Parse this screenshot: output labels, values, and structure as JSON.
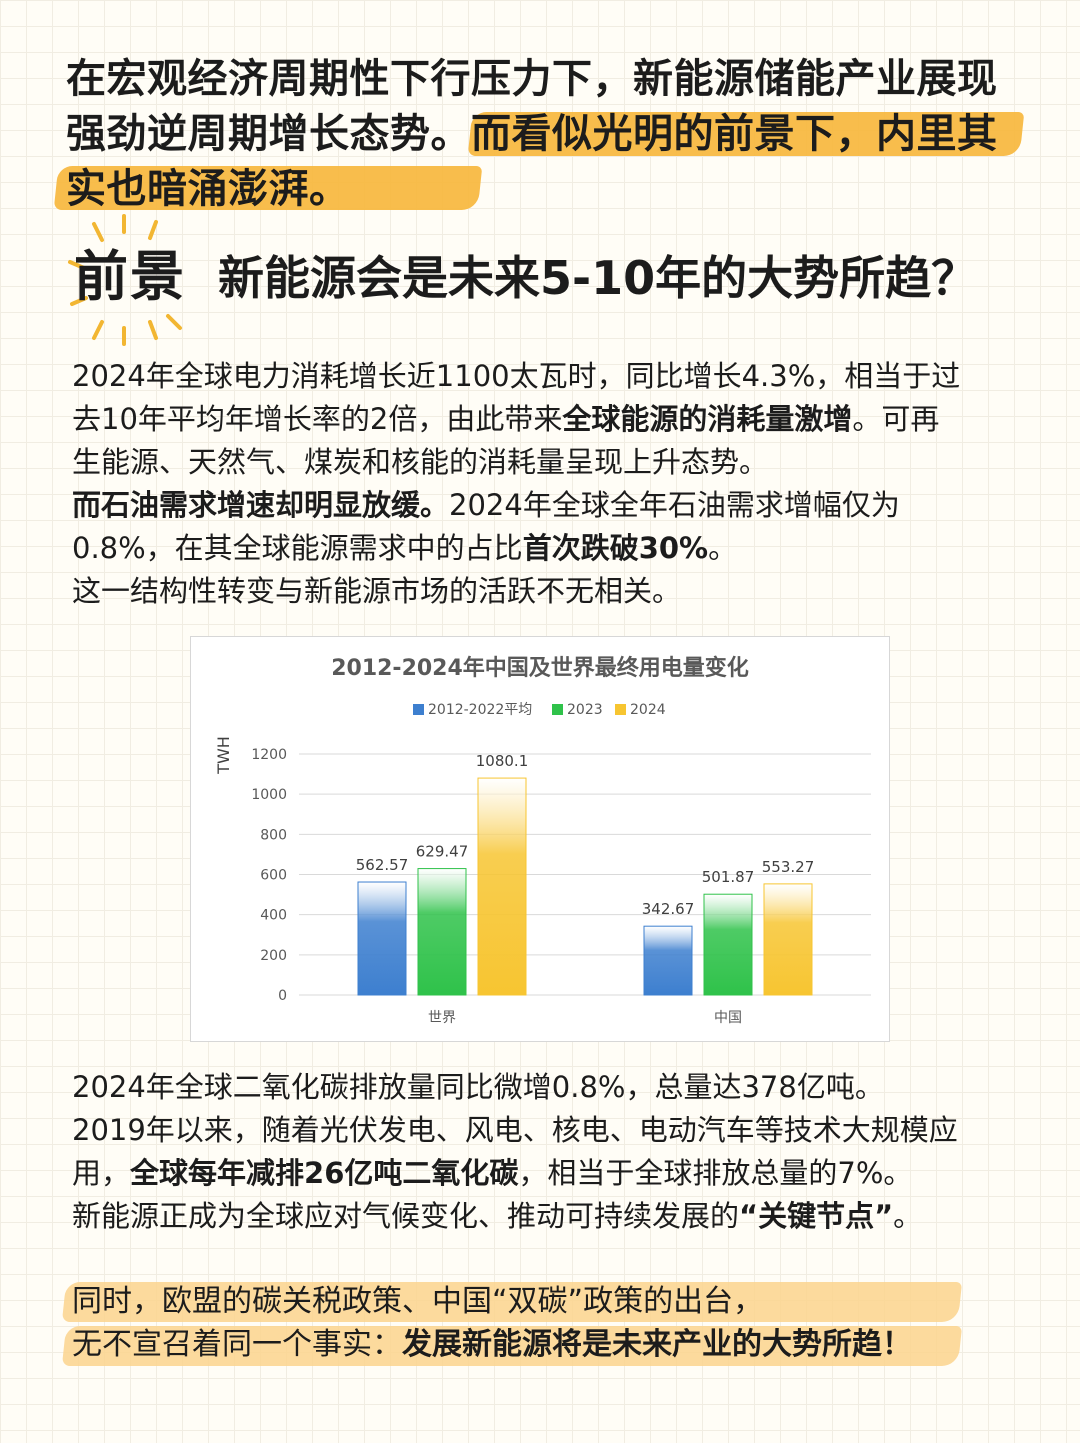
{
  "headline": {
    "line1": "在宏观经济周期性下行压力下，新能源储能产业展现",
    "line2a": "强劲逆周期增长态势。",
    "line2b": "而看似光明的前景下，内里其",
    "line3": "实也暗涌澎湃。"
  },
  "section": {
    "tag": "前景",
    "title": "新能源会是未来5-10年的大势所趋？"
  },
  "para1": {
    "l1": "2024年全球电力消耗增长近1100太瓦时，同比增长4.3%，相当于过",
    "l2a": "去10年平均年增长率的2倍，由此带来",
    "l2b": "全球能源的消耗量激增",
    "l2c": "。可再",
    "l3": "生能源、天然气、煤炭和核能的消耗量呈现上升态势。",
    "l4a": "而石油需求增速却明显放缓。",
    "l4b": "2024年全球全年石油需求增幅仅为",
    "l5a": "0.8%，在其全球能源需求中的占比",
    "l5b": "首次跌破30%",
    "l5c": "。",
    "l6": "这一结构性转变与新能源市场的活跃不无相关。"
  },
  "chart_data": {
    "type": "bar",
    "title": "2012-2024年中国及世界最终用电量变化",
    "ylabel": "TWH",
    "xlabel": "",
    "ylim": [
      0,
      1200
    ],
    "yticks": [
      0,
      200,
      400,
      600,
      800,
      1000,
      1200
    ],
    "categories": [
      "世界",
      "中国"
    ],
    "series": [
      {
        "name": "2012-2022平均",
        "values": [
          562.57,
          342.67
        ],
        "labels": [
          "562.57",
          "342.67"
        ],
        "color": "#3d7fcf"
      },
      {
        "name": "2023",
        "values": [
          629.47,
          501.87
        ],
        "labels": [
          "629.47",
          "501.87"
        ],
        "color": "#2fc24a"
      },
      {
        "name": "2024",
        "values": [
          1080.1,
          553.27
        ],
        "labels": [
          "1080.1",
          "553.27"
        ],
        "color": "#f7c531"
      }
    ],
    "legend": "top",
    "grid": true
  },
  "para2": {
    "l1": "2024年全球二氧化碳排放量同比微增0.8%，总量达378亿吨。",
    "l2": "2019年以来，随着光伏发电、风电、核电、电动汽车等技术大规模应",
    "l3a": "用，",
    "l3b": "全球每年减排26亿吨二氧化碳",
    "l3c": "，相当于全球排放总量的7%。",
    "l4a": "新能源正成为全球应对气候变化、推动可持续发展的",
    "l4b": "“关键节点”",
    "l4c": "。"
  },
  "para3": {
    "l1": "同时，欧盟的碳关税政策、中国“双碳”政策的出台，",
    "l2a": "无不宣召着同一个事实：",
    "l2b": "发展新能源将是未来产业的大势所趋！"
  },
  "colors": {
    "highlight": "#f7b73d",
    "highlight_soft": "#fbd38d",
    "background": "#fffdf6"
  }
}
